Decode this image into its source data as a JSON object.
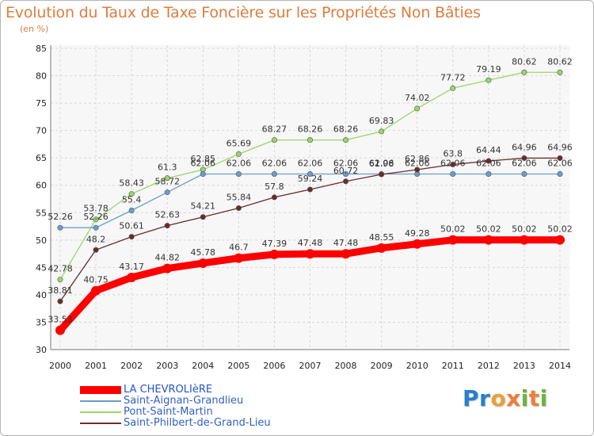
{
  "title": "Evolution du Taux de Taxe Foncière sur les Propriétés Non Bâties",
  "unit": "(en %)",
  "brand": {
    "text": "Proxiti"
  },
  "chart_data": {
    "type": "line",
    "x": [
      2000,
      2001,
      2002,
      2003,
      2004,
      2005,
      2006,
      2007,
      2008,
      2009,
      2010,
      2011,
      2012,
      2013,
      2014
    ],
    "ylim": [
      30,
      85
    ],
    "yticks": [
      30,
      35,
      40,
      45,
      50,
      55,
      60,
      65,
      70,
      75,
      80,
      85
    ],
    "grid": true,
    "legend_position": "bottom",
    "series": [
      {
        "name": "LA CHEVROLIèRE",
        "color": "#ff0000",
        "values": [
          33.53,
          40.75,
          43.17,
          44.82,
          45.78,
          46.7,
          47.39,
          47.48,
          47.48,
          48.55,
          49.28,
          50.02,
          50.02,
          50.02,
          50.02
        ],
        "labels": [
          "33.53",
          "40.75",
          "43.17",
          "44.82",
          "45.78",
          "46.7",
          "47.39",
          "47.48",
          "47.48",
          "48.55",
          "49.28",
          "50.02",
          "50.02",
          "50.02",
          "50.02"
        ]
      },
      {
        "name": "Saint-Aignan-Grandlieu",
        "color": "#6a9dd0",
        "values": [
          52.26,
          52.26,
          55.4,
          58.72,
          62.06,
          62.06,
          62.06,
          62.06,
          62.06,
          62.06,
          62.06,
          62.06,
          62.06,
          62.06,
          62.06
        ],
        "labels": [
          "52.26",
          "52.26",
          "55.4",
          "58.72",
          "62.06",
          "62.06",
          "62.06",
          "62.06",
          "62.06",
          "62.06",
          "62.06",
          "62.06",
          "62.06",
          "62.06",
          "62.06"
        ]
      },
      {
        "name": "Pont-Saint-Martin",
        "color": "#9ad66b",
        "values": [
          42.78,
          53.78,
          58.43,
          61.3,
          62.85,
          65.69,
          68.27,
          68.26,
          68.26,
          69.83,
          74.02,
          77.72,
          79.19,
          80.62,
          80.62
        ],
        "labels": [
          "42.78",
          "53.78",
          "58.43",
          "61.3",
          "62.85",
          "65.69",
          "68.27",
          "68.26",
          "68.26",
          "69.83",
          "74.02",
          "77.72",
          "79.19",
          "80.62",
          "80.62"
        ]
      },
      {
        "name": "Saint-Philbert-de-Grand-Lieu",
        "color": "#6b2b2b",
        "values": [
          38.81,
          48.2,
          50.61,
          52.63,
          54.21,
          55.84,
          57.8,
          59.24,
          60.72,
          61.98,
          62.86,
          63.8,
          64.44,
          64.96,
          64.96
        ],
        "labels": [
          "38.81",
          "48.2",
          "50.61",
          "52.63",
          "54.21",
          "55.84",
          "57.8",
          "59.24",
          "60.72",
          "61.98",
          "62.86",
          "63.8",
          "64.44",
          "64.96",
          "64.96"
        ]
      }
    ]
  }
}
